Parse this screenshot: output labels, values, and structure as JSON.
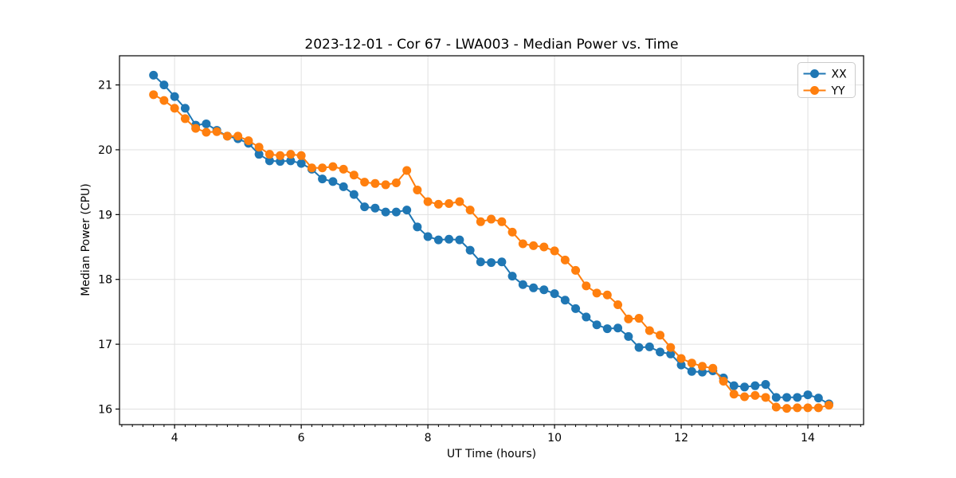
{
  "figure": {
    "title": "2023-12-01 - Cor 67 - LWA003 - Median Power vs. Time",
    "background": "#ffffff"
  },
  "chart_data": {
    "type": "line",
    "title": "2023-12-01 - Cor 67 - LWA003 - Median Power vs. Time",
    "xlabel": "UT Time (hours)",
    "ylabel": "Median Power (CPU)",
    "xlim": [
      3.13,
      14.88
    ],
    "ylim": [
      15.76,
      21.45
    ],
    "x_ticks": [
      4,
      6,
      8,
      10,
      12,
      14
    ],
    "y_ticks": [
      16,
      17,
      18,
      19,
      20,
      21
    ],
    "x_minor_tick_step": 0.16667,
    "grid": true,
    "grid_color": "#e0e0e0",
    "legend_position": "upper right",
    "marker": "o",
    "x": [
      3.667,
      3.833,
      4.0,
      4.167,
      4.333,
      4.5,
      4.667,
      4.833,
      5.0,
      5.167,
      5.333,
      5.5,
      5.667,
      5.833,
      6.0,
      6.167,
      6.333,
      6.5,
      6.667,
      6.833,
      7.0,
      7.167,
      7.333,
      7.5,
      7.667,
      7.833,
      8.0,
      8.167,
      8.333,
      8.5,
      8.667,
      8.833,
      9.0,
      9.167,
      9.333,
      9.5,
      9.667,
      9.833,
      10.0,
      10.167,
      10.333,
      10.5,
      10.667,
      10.833,
      11.0,
      11.167,
      11.333,
      11.5,
      11.667,
      11.833,
      12.0,
      12.167,
      12.333,
      12.5,
      12.667,
      12.833,
      13.0,
      13.167,
      13.333,
      13.5,
      13.667,
      13.833,
      14.0,
      14.167,
      14.333
    ],
    "series": [
      {
        "name": "XX",
        "color": "#1f77b4",
        "values": [
          21.15,
          21.0,
          20.82,
          20.64,
          20.38,
          20.4,
          20.3,
          20.21,
          20.17,
          20.1,
          19.93,
          19.83,
          19.82,
          19.83,
          19.79,
          19.7,
          19.55,
          19.51,
          19.43,
          19.31,
          19.12,
          19.1,
          19.04,
          19.04,
          19.07,
          18.81,
          18.66,
          18.61,
          18.62,
          18.61,
          18.45,
          18.27,
          18.26,
          18.27,
          18.05,
          17.92,
          17.87,
          17.84,
          17.78,
          17.68,
          17.55,
          17.42,
          17.3,
          17.24,
          17.25,
          17.12,
          16.95,
          16.96,
          16.88,
          16.85,
          16.68,
          16.58,
          16.57,
          16.59,
          16.48,
          16.36,
          16.34,
          16.36,
          16.38,
          16.18,
          16.18,
          16.18,
          16.22,
          16.17,
          16.08
        ]
      },
      {
        "name": "YY",
        "color": "#ff7f0e",
        "values": [
          20.85,
          20.76,
          20.64,
          20.48,
          20.33,
          20.27,
          20.28,
          20.21,
          20.21,
          20.14,
          20.04,
          19.93,
          19.91,
          19.93,
          19.91,
          19.72,
          19.72,
          19.74,
          19.7,
          19.61,
          19.5,
          19.48,
          19.46,
          19.49,
          19.68,
          19.38,
          19.2,
          19.16,
          19.17,
          19.2,
          19.07,
          18.89,
          18.93,
          18.89,
          18.73,
          18.55,
          18.52,
          18.5,
          18.44,
          18.3,
          18.14,
          17.9,
          17.79,
          17.76,
          17.61,
          17.39,
          17.4,
          17.21,
          17.14,
          16.95,
          16.78,
          16.71,
          16.66,
          16.63,
          16.43,
          16.23,
          16.19,
          16.21,
          16.18,
          16.03,
          16.01,
          16.02,
          16.02,
          16.02,
          16.06
        ]
      }
    ]
  },
  "legend": {
    "items": [
      {
        "label": "XX",
        "color": "#1f77b4"
      },
      {
        "label": "YY",
        "color": "#ff7f0e"
      }
    ]
  },
  "style": {
    "spine_color": "#000000",
    "tick_color": "#000000",
    "legend_border_color": "#cccccc",
    "legend_background": "#ffffff"
  }
}
